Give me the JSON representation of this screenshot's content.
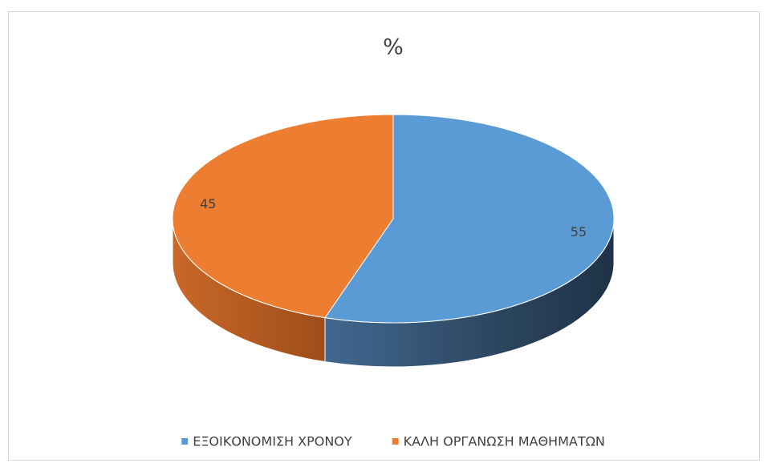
{
  "chart_data": {
    "type": "pie",
    "title": "%",
    "categories": [
      "ΕΞΟΙΚΟΝΟΜΙΣΗ ΧΡΟΝΟΥ",
      "ΚΑΛΗ ΟΡΓΑΝΩΣΗ ΜΑΘΗΜΑΤΩΝ"
    ],
    "values": [
      55,
      45
    ],
    "colors": [
      "#5b9bd5",
      "#ed7d31"
    ],
    "legend": "bottom"
  }
}
